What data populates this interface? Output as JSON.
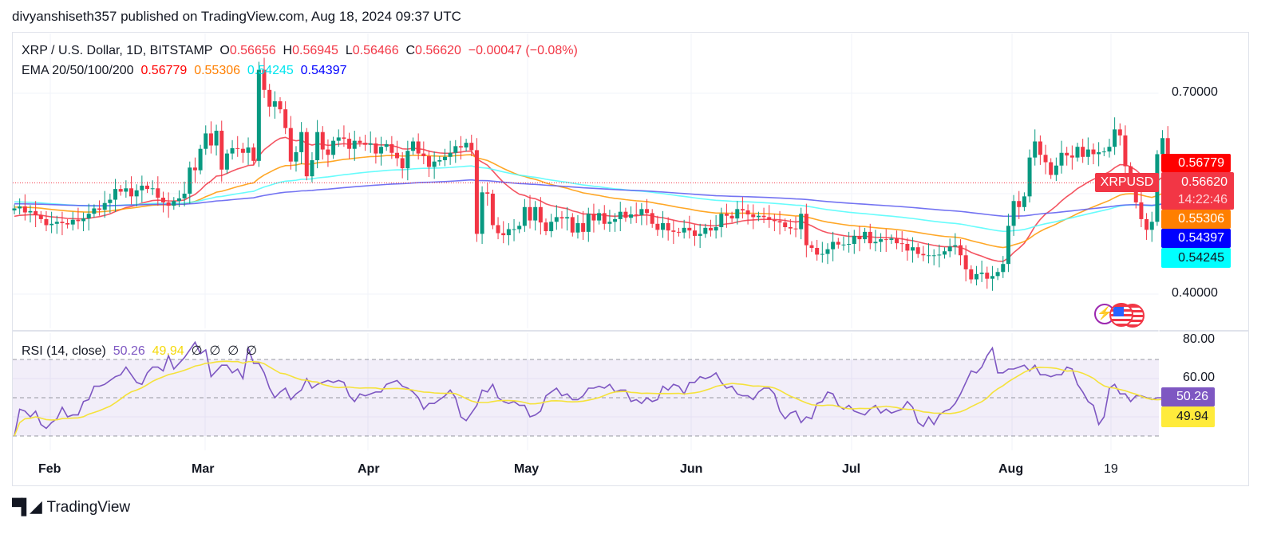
{
  "header": {
    "publisher_line": "divyanshiseth357 published on TradingView.com, Aug 18, 2024 09:37 UTC"
  },
  "legend": {
    "symbol": "XRP / U.S. Dollar, 1D, BITSTAMP",
    "open_label": "O",
    "open": "0.56656",
    "high_label": "H",
    "high": "0.56945",
    "low_label": "L",
    "low": "0.56466",
    "close_label": "C",
    "close": "0.56620",
    "change": "−0.00047 (−0.08%)",
    "ema_label": "EMA 20/50/100/200",
    "ema20": "0.56779",
    "ema50": "0.55306",
    "ema100": "0.54245",
    "ema200": "0.54397"
  },
  "rsi_legend": {
    "label": "RSI (14, close)",
    "rsi": "50.26",
    "rsi_ma": "49.94",
    "na_values": [
      "∅",
      "∅",
      "∅",
      "∅"
    ]
  },
  "price_axis": {
    "ticks": [
      "0.70000",
      "0.40000"
    ],
    "tags": {
      "ema20": "0.56779",
      "last": "0.56620",
      "countdown": "14:22:46",
      "ema50": "0.55306",
      "ema200": "0.54397",
      "ema100": "0.54245"
    },
    "symbol_tag": "XRPUSD"
  },
  "rsi_axis": {
    "ticks": [
      "80.00",
      "60.00"
    ],
    "tags": {
      "rsi": "50.26",
      "rsi_ma": "49.94"
    }
  },
  "time_axis": {
    "ticks": [
      "Feb",
      "Mar",
      "Apr",
      "May",
      "Jun",
      "Jul",
      "Aug",
      "19"
    ]
  },
  "footer": {
    "brand": "TradingView"
  },
  "colors": {
    "up": "#089981",
    "down": "#f23645",
    "ema20": "#f23645",
    "ema50": "#ff9800",
    "ema100": "#00ffff",
    "ema200": "#2962ff",
    "rsi": "#7e57c2",
    "rsi_ma": "#ffeb3b",
    "rsi_band": "#7e57c2"
  },
  "chart_data": [
    {
      "type": "candlestick",
      "title": "XRP / U.S. Dollar, 1D, BITSTAMP",
      "xlabel": "",
      "ylabel": "USD",
      "ylim": [
        0.345,
        0.745
      ],
      "x_start": "2024-01-25",
      "x_end": "2024-08-18",
      "y_ticks": [
        0.4,
        0.7
      ],
      "x_ticks": [
        "Feb",
        "Mar",
        "Apr",
        "May",
        "Jun",
        "Jul",
        "Aug",
        "19"
      ],
      "closes": [
        0.528,
        0.531,
        0.522,
        0.524,
        0.518,
        0.512,
        0.503,
        0.505,
        0.508,
        0.506,
        0.504,
        0.511,
        0.509,
        0.513,
        0.52,
        0.528,
        0.526,
        0.536,
        0.541,
        0.557,
        0.553,
        0.558,
        0.546,
        0.555,
        0.562,
        0.557,
        0.558,
        0.544,
        0.537,
        0.532,
        0.539,
        0.543,
        0.55,
        0.589,
        0.585,
        0.617,
        0.64,
        0.622,
        0.644,
        0.586,
        0.61,
        0.618,
        0.617,
        0.611,
        0.619,
        0.599,
        0.735,
        0.705,
        0.68,
        0.688,
        0.676,
        0.648,
        0.598,
        0.612,
        0.642,
        0.576,
        0.6,
        0.642,
        0.616,
        0.608,
        0.629,
        0.634,
        0.632,
        0.617,
        0.629,
        0.626,
        0.623,
        0.625,
        0.61,
        0.62,
        0.624,
        0.611,
        0.603,
        0.588,
        0.614,
        0.628,
        0.61,
        0.606,
        0.59,
        0.598,
        0.6,
        0.605,
        0.611,
        0.621,
        0.619,
        0.626,
        0.615,
        0.49,
        0.552,
        0.55,
        0.503,
        0.491,
        0.488,
        0.497,
        0.497,
        0.502,
        0.53,
        0.51,
        0.53,
        0.507,
        0.494,
        0.508,
        0.515,
        0.513,
        0.515,
        0.492,
        0.506,
        0.493,
        0.52,
        0.51,
        0.521,
        0.505,
        0.508,
        0.512,
        0.523,
        0.514,
        0.519,
        0.518,
        0.527,
        0.521,
        0.505,
        0.496,
        0.506,
        0.495,
        0.493,
        0.492,
        0.499,
        0.495,
        0.487,
        0.49,
        0.499,
        0.495,
        0.5,
        0.52,
        0.517,
        0.513,
        0.527,
        0.525,
        0.519,
        0.515,
        0.517,
        0.515,
        0.511,
        0.509,
        0.507,
        0.5,
        0.498,
        0.497,
        0.52,
        0.473,
        0.469,
        0.459,
        0.46,
        0.467,
        0.478,
        0.474,
        0.474,
        0.475,
        0.487,
        0.482,
        0.493,
        0.476,
        0.478,
        0.482,
        0.481,
        0.483,
        0.476,
        0.475,
        0.465,
        0.47,
        0.46,
        0.458,
        0.458,
        0.458,
        0.459,
        0.464,
        0.471,
        0.473,
        0.458,
        0.437,
        0.422,
        0.43,
        0.432,
        0.423,
        0.427,
        0.433,
        0.445,
        0.502,
        0.539,
        0.53,
        0.546,
        0.604,
        0.628,
        0.608,
        0.597,
        0.578,
        0.592,
        0.611,
        0.607,
        0.604,
        0.62,
        0.605,
        0.616,
        0.609,
        0.612,
        0.613,
        0.62,
        0.646,
        0.637,
        0.591,
        0.563,
        0.537,
        0.512,
        0.496,
        0.508,
        0.609,
        0.633,
        0.596,
        0.588,
        0.572,
        0.556,
        0.563,
        0.571,
        0.566
      ],
      "series": [
        {
          "name": "EMA 20",
          "last": 0.56779
        },
        {
          "name": "EMA 50",
          "last": 0.55306
        },
        {
          "name": "EMA 100",
          "last": 0.54245
        },
        {
          "name": "EMA 200",
          "last": 0.54397
        }
      ]
    },
    {
      "type": "line",
      "title": "RSI (14, close)",
      "ylim": [
        18,
        92
      ],
      "y_ticks": [
        80,
        60
      ],
      "bands": [
        30,
        50,
        70
      ],
      "series": [
        {
          "name": "RSI",
          "last": 50.26,
          "values": [
            30,
            44,
            43,
            40,
            43,
            36,
            34,
            37,
            39,
            45,
            40,
            41,
            41,
            48,
            49,
            56,
            56,
            57,
            59,
            61,
            62,
            66,
            62,
            58,
            57,
            63,
            66,
            66,
            64,
            72,
            65,
            68,
            71,
            75,
            79,
            73,
            75,
            61,
            64,
            67,
            67,
            63,
            65,
            60,
            76,
            68,
            68,
            63,
            55,
            50,
            53,
            55,
            49,
            52,
            54,
            60,
            55,
            57,
            58,
            59,
            58,
            59,
            58,
            51,
            48,
            52,
            51,
            52,
            53,
            53,
            57,
            58,
            59,
            56,
            55,
            53,
            50,
            44,
            47,
            47,
            49,
            51,
            54,
            50,
            40,
            38,
            42,
            46,
            54,
            53,
            57,
            50,
            48,
            47,
            48,
            46,
            46,
            40,
            41,
            43,
            51,
            53,
            55,
            51,
            52,
            49,
            49,
            51,
            55,
            55,
            56,
            55,
            57,
            53,
            54,
            54,
            48,
            49,
            47,
            50,
            48,
            49,
            56,
            54,
            57,
            56,
            52,
            58,
            58,
            61,
            60,
            61,
            63,
            58,
            55,
            56,
            52,
            51,
            51,
            49,
            53,
            55,
            55,
            52,
            43,
            39,
            42,
            43,
            37,
            40,
            39,
            47,
            48,
            53,
            52,
            46,
            44,
            46,
            43,
            42,
            41,
            44,
            46,
            42,
            44,
            42,
            43,
            44,
            48,
            45,
            37,
            35,
            40,
            36,
            41,
            43,
            44,
            47,
            52,
            58,
            64,
            63,
            66,
            72,
            76,
            63,
            63,
            65,
            65,
            66,
            67,
            64,
            67,
            62,
            62,
            61,
            62,
            62,
            66,
            65,
            57,
            53,
            48,
            46,
            36,
            40,
            55,
            57,
            52,
            52,
            48,
            51,
            51,
            50,
            49,
            50,
            50,
            50
          ]
        },
        {
          "name": "RSI-based MA",
          "last": 49.94
        }
      ]
    }
  ]
}
